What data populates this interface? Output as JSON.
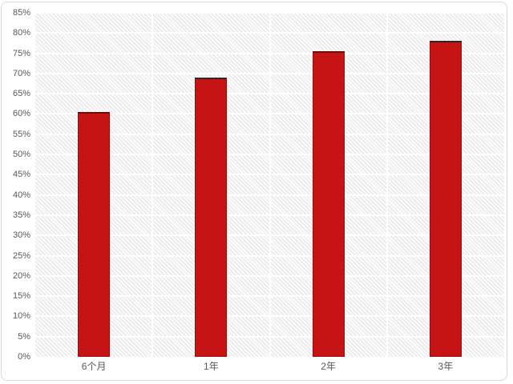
{
  "chart_data": {
    "type": "bar",
    "title": "",
    "xlabel": "",
    "ylabel": "",
    "categories": [
      "6个月",
      "1年",
      "2年",
      "3年"
    ],
    "values": [
      60.5,
      69,
      75.5,
      78
    ],
    "value_unit": "%",
    "ylim": [
      0,
      85
    ],
    "ytick_step": 5,
    "ytick_labels": [
      "0%",
      "5%",
      "10%",
      "15%",
      "20%",
      "25%",
      "30%",
      "35%",
      "40%",
      "45%",
      "50%",
      "55%",
      "60%",
      "65%",
      "70%",
      "75%",
      "80%",
      "85%"
    ],
    "grid": true,
    "legend": false,
    "layout_hints": {
      "legend_position": "none",
      "plot_background": "diagonal-hatch",
      "gridlines": "horizontal-white-every-5pct",
      "category_separators": "vertical-white"
    },
    "colors": {
      "bar_fill": "#c61313",
      "bar_edge": "#960f0f",
      "bar_top_edge": "#6f0a0a",
      "axis_text": "#595959",
      "gridline": "#ffffff",
      "hatch_line": "#e3e3e3",
      "plot_bg": "#fbfbfb",
      "card_bg": "#ffffff",
      "card_border": "#d9d9d9",
      "page_bg": "#ffffff"
    }
  }
}
